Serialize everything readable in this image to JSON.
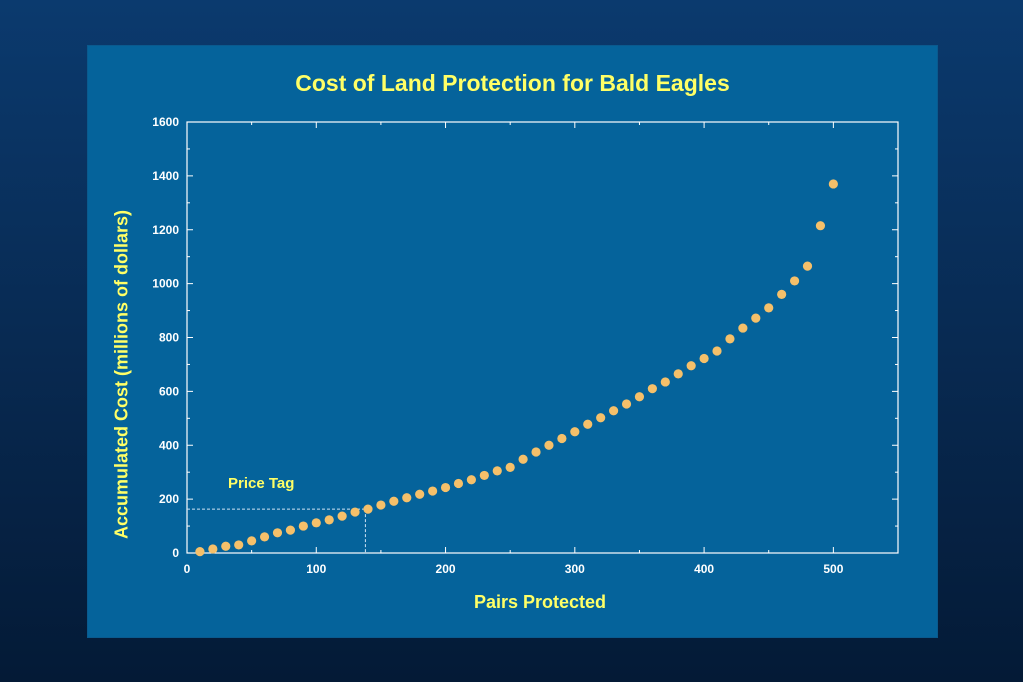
{
  "chart_data": {
    "type": "scatter",
    "title": "Cost of Land Protection for Bald Eagles",
    "xlabel": "Pairs Protected",
    "ylabel": "Accumulated Cost (millions of dollars)",
    "xlim": [
      0,
      550
    ],
    "ylim": [
      0,
      1600
    ],
    "xticks": [
      0,
      100,
      200,
      300,
      400,
      500
    ],
    "yticks": [
      0,
      200,
      400,
      600,
      800,
      1000,
      1200,
      1400,
      1600
    ],
    "grid": false,
    "marker_color": "#f5c06a",
    "series": [
      {
        "name": "Accumulated cost",
        "x": [
          10,
          20,
          30,
          40,
          50,
          60,
          70,
          80,
          90,
          100,
          110,
          120,
          130,
          140,
          150,
          160,
          170,
          180,
          190,
          200,
          210,
          220,
          230,
          240,
          250,
          260,
          270,
          280,
          290,
          300,
          310,
          320,
          330,
          340,
          350,
          360,
          370,
          380,
          390,
          400,
          410,
          420,
          430,
          440,
          450,
          460,
          470,
          480,
          490,
          500
        ],
        "y": [
          5,
          15,
          25,
          30,
          45,
          60,
          75,
          85,
          100,
          112,
          123,
          137,
          152,
          163,
          178,
          192,
          205,
          218,
          230,
          243,
          258,
          272,
          288,
          305,
          318,
          348,
          375,
          400,
          425,
          450,
          478,
          502,
          528,
          553,
          580,
          610,
          635,
          665,
          695,
          722,
          750,
          795,
          835,
          872,
          910,
          960,
          1010,
          1065,
          1215,
          1370
        ]
      }
    ],
    "annotations": [
      {
        "text": "Price Tag",
        "x": 138,
        "y": 163,
        "style": "dashed guide lines to axes"
      }
    ]
  }
}
